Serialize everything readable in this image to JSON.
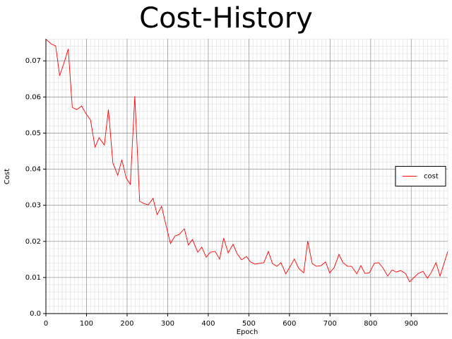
{
  "chart_data": {
    "type": "line",
    "title": "Cost-History",
    "x_label": "Epoch",
    "y_label": "Cost",
    "x": [
      0,
      13,
      24,
      34,
      44,
      55,
      65,
      76,
      88,
      98,
      110,
      121,
      131,
      144,
      154,
      165,
      177,
      187,
      198,
      208,
      219,
      231,
      241,
      252,
      264,
      274,
      285,
      297,
      307,
      318,
      328,
      341,
      351,
      361,
      374,
      384,
      395,
      405,
      417,
      428,
      438,
      449,
      461,
      471,
      482,
      494,
      504,
      515,
      525,
      537,
      548,
      558,
      569,
      579,
      591,
      602,
      612,
      623,
      635,
      645,
      656,
      666,
      678,
      689,
      699,
      710,
      722,
      732,
      743,
      753,
      766,
      776,
      786,
      797,
      809,
      820,
      830,
      842,
      853,
      863,
      874,
      886,
      896,
      907,
      917,
      929,
      940,
      950,
      961,
      971,
      990
    ],
    "series": [
      {
        "name": "cost",
        "color": "#ff0000",
        "values": [
          0.076,
          0.0747,
          0.0741,
          0.0659,
          0.0692,
          0.0733,
          0.0571,
          0.0565,
          0.0575,
          0.0555,
          0.0536,
          0.0461,
          0.0487,
          0.0467,
          0.0565,
          0.0417,
          0.0383,
          0.0426,
          0.0375,
          0.0358,
          0.0602,
          0.0311,
          0.0305,
          0.0301,
          0.0319,
          0.0274,
          0.0297,
          0.0239,
          0.0194,
          0.0215,
          0.0219,
          0.0235,
          0.019,
          0.0205,
          0.017,
          0.0184,
          0.0156,
          0.017,
          0.0172,
          0.0151,
          0.0209,
          0.0168,
          0.0192,
          0.0166,
          0.0149,
          0.0158,
          0.0143,
          0.0137,
          0.0139,
          0.0141,
          0.0172,
          0.0139,
          0.0131,
          0.0141,
          0.011,
          0.0131,
          0.0151,
          0.0125,
          0.0113,
          0.0201,
          0.0139,
          0.0131,
          0.0133,
          0.0143,
          0.0113,
          0.0127,
          0.0164,
          0.0141,
          0.0131,
          0.0131,
          0.011,
          0.0133,
          0.0111,
          0.0113,
          0.0139,
          0.0141,
          0.0127,
          0.0104,
          0.0121,
          0.0115,
          0.0119,
          0.0111,
          0.0088,
          0.01,
          0.0111,
          0.0117,
          0.0098,
          0.0115,
          0.0141,
          0.0104,
          0.0172
        ]
      }
    ],
    "xlim": [
      0,
      990
    ],
    "ylim": [
      0,
      0.0761
    ],
    "xticks": [
      0,
      100,
      200,
      300,
      400,
      500,
      600,
      700,
      800,
      900
    ],
    "yticks": [
      {
        "value": 0,
        "label": "0.0"
      },
      0.01,
      0.02,
      0.03,
      0.04,
      0.05,
      0.06,
      0.07
    ],
    "grid": true,
    "minor_grid": true,
    "legend": "center right"
  }
}
